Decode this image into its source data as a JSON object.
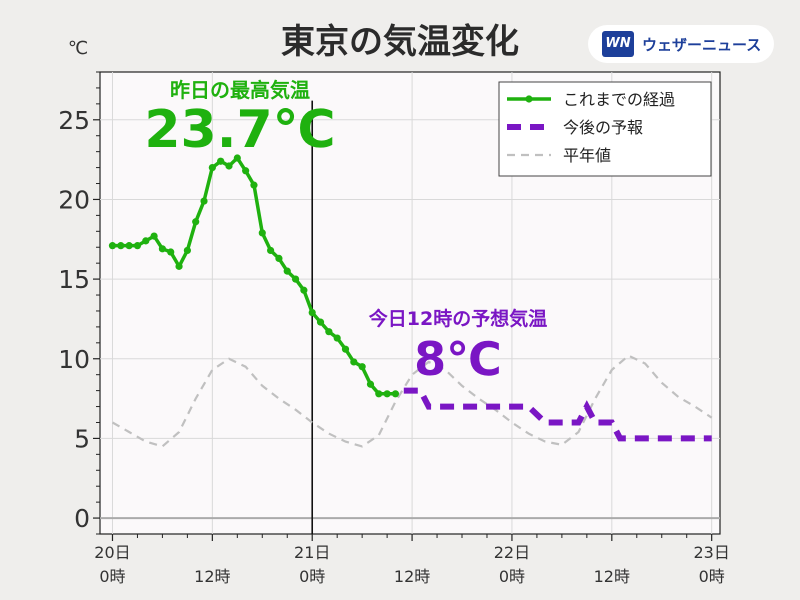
{
  "header": {
    "title": "東京の気温変化",
    "logo_mark": "WN",
    "logo_text": "ウェザーニュース"
  },
  "chart_data": {
    "type": "line",
    "unit": "℃",
    "xlabel": "",
    "ylabel": "",
    "xlim": [
      -1.5,
      73
    ],
    "ylim": [
      -1,
      28
    ],
    "grid": true,
    "legend_position": "top-right",
    "x_ticks": [
      {
        "x": 0,
        "line1": "20日",
        "line2": "0時"
      },
      {
        "x": 12,
        "line1": "",
        "line2": "12時"
      },
      {
        "x": 24,
        "line1": "21日",
        "line2": "0時"
      },
      {
        "x": 36,
        "line1": "",
        "line2": "12時"
      },
      {
        "x": 48,
        "line1": "22日",
        "line2": "0時"
      },
      {
        "x": 60,
        "line1": "",
        "line2": "12時"
      },
      {
        "x": 72,
        "line1": "23日",
        "line2": "0時"
      }
    ],
    "y_ticks": [
      0,
      5,
      10,
      15,
      20,
      25
    ],
    "now_x": 24,
    "series": [
      {
        "name": "これまでの経過",
        "style": "solid-markers",
        "color": "#1fb10f",
        "points": [
          [
            0,
            17.1
          ],
          [
            1,
            17.1
          ],
          [
            2,
            17.1
          ],
          [
            3,
            17.1
          ],
          [
            4,
            17.4
          ],
          [
            5,
            17.7
          ],
          [
            6,
            16.9
          ],
          [
            7,
            16.7
          ],
          [
            8,
            15.8
          ],
          [
            9,
            16.8
          ],
          [
            10,
            18.6
          ],
          [
            11,
            19.9
          ],
          [
            12,
            22.0
          ],
          [
            13,
            22.4
          ],
          [
            14,
            22.1
          ],
          [
            15,
            22.6
          ],
          [
            16,
            21.8
          ],
          [
            17,
            20.9
          ],
          [
            18,
            17.9
          ],
          [
            19,
            16.8
          ],
          [
            20,
            16.3
          ],
          [
            21,
            15.5
          ],
          [
            22,
            15.0
          ],
          [
            23,
            14.3
          ],
          [
            24,
            12.9
          ],
          [
            25,
            12.3
          ],
          [
            26,
            11.7
          ],
          [
            27,
            11.3
          ],
          [
            28,
            10.6
          ],
          [
            29,
            9.8
          ],
          [
            30,
            9.5
          ],
          [
            31,
            8.4
          ],
          [
            32,
            7.8
          ],
          [
            33,
            7.8
          ],
          [
            34,
            7.8
          ]
        ]
      },
      {
        "name": "今後の予報",
        "style": "thick-dashed",
        "color": "#7a16c4",
        "points": [
          [
            35,
            8.0
          ],
          [
            36,
            8.0
          ],
          [
            37,
            8.0
          ],
          [
            38,
            7.0
          ],
          [
            40,
            7.0
          ],
          [
            42,
            7.0
          ],
          [
            44,
            7.0
          ],
          [
            46,
            7.0
          ],
          [
            48,
            7.0
          ],
          [
            50,
            7.0
          ],
          [
            52,
            6.0
          ],
          [
            54,
            6.0
          ],
          [
            56,
            6.0
          ],
          [
            57,
            7.0
          ],
          [
            58,
            6.0
          ],
          [
            60,
            6.0
          ],
          [
            61,
            5.0
          ],
          [
            64,
            5.0
          ],
          [
            68,
            5.0
          ],
          [
            72,
            5.0
          ]
        ]
      },
      {
        "name": "平年値",
        "style": "dashed",
        "color": "#c0c0c0",
        "points": [
          [
            0,
            6.0
          ],
          [
            2,
            5.4
          ],
          [
            4,
            4.8
          ],
          [
            6,
            4.5
          ],
          [
            8,
            5.4
          ],
          [
            10,
            7.5
          ],
          [
            12,
            9.3
          ],
          [
            14,
            10.0
          ],
          [
            16,
            9.5
          ],
          [
            18,
            8.3
          ],
          [
            20,
            7.5
          ],
          [
            22,
            6.8
          ],
          [
            24,
            6.0
          ],
          [
            26,
            5.3
          ],
          [
            28,
            4.8
          ],
          [
            30,
            4.5
          ],
          [
            32,
            5.2
          ],
          [
            34,
            7.3
          ],
          [
            36,
            9.0
          ],
          [
            38,
            9.8
          ],
          [
            40,
            9.3
          ],
          [
            42,
            8.3
          ],
          [
            44,
            7.5
          ],
          [
            46,
            6.8
          ],
          [
            48,
            6.0
          ],
          [
            50,
            5.3
          ],
          [
            52,
            4.8
          ],
          [
            54,
            4.6
          ],
          [
            56,
            5.4
          ],
          [
            58,
            7.5
          ],
          [
            60,
            9.3
          ],
          [
            62,
            10.2
          ],
          [
            64,
            9.7
          ],
          [
            66,
            8.5
          ],
          [
            68,
            7.6
          ],
          [
            70,
            7.0
          ],
          [
            72,
            6.3
          ]
        ]
      }
    ],
    "annotations": {
      "yesterday_max_label": "昨日の最高気温",
      "yesterday_max_value": "23.7℃",
      "today_noon_label": "今日12時の予想気温",
      "today_noon_value": "8℃"
    }
  }
}
